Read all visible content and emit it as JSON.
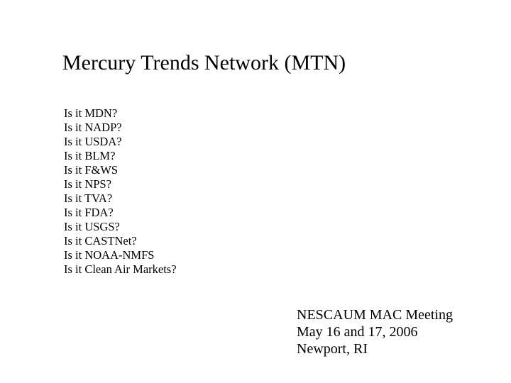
{
  "title": "Mercury Trends Network (MTN)",
  "questions": [
    "Is it MDN?",
    "Is it NADP?",
    "Is it USDA?",
    "Is it BLM?",
    "Is it F&WS",
    "Is it NPS?",
    "Is it TVA?",
    "Is it FDA?",
    "Is it USGS?",
    "Is it CASTNet?",
    "Is it NOAA-NMFS",
    "Is it Clean Air Markets?"
  ],
  "footer": {
    "line1": "NESCAUM MAC Meeting",
    "line2": "May 16 and 17, 2006",
    "line3": "Newport, RI"
  },
  "style": {
    "background_color": "#ffffff",
    "text_color": "#000000",
    "font_family": "Times New Roman",
    "title_fontsize": 30,
    "list_fontsize": 16.5,
    "list_lineheight": 20,
    "footer_fontsize": 20,
    "footer_lineheight": 24
  }
}
